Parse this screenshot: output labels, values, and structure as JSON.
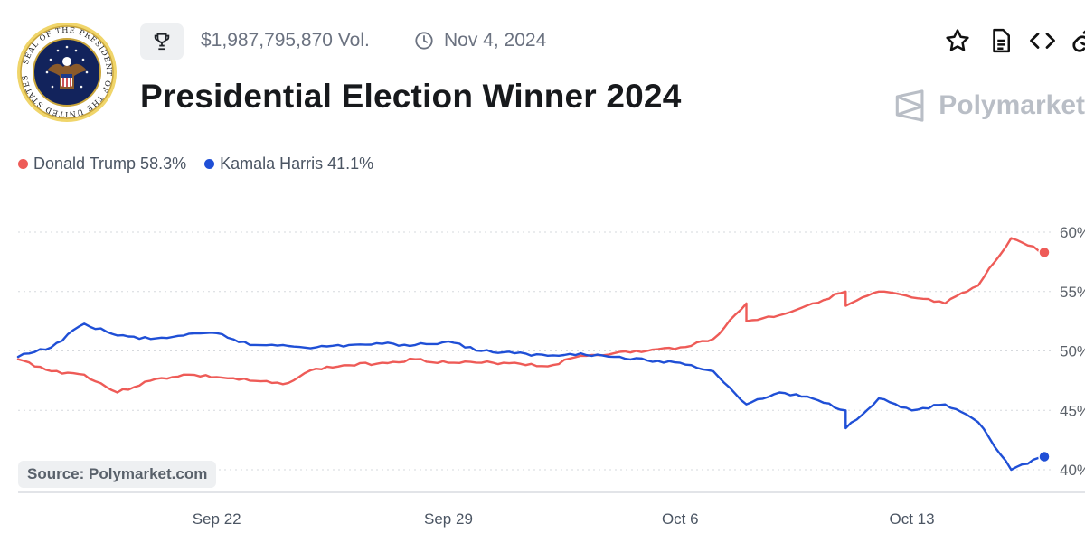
{
  "header": {
    "volume": "$1,987,795,870 Vol.",
    "date": "Nov 4, 2024",
    "title": "Presidential Election Winner 2024",
    "brand": "Polymarket"
  },
  "seal": {
    "text": "SEAL OF THE PRESIDENT OF THE UNITED STATES"
  },
  "icons": {
    "trophy": "trophy-icon",
    "clock": "clock-icon",
    "toolbar": [
      "star-icon",
      "document-icon",
      "embed-code-icon",
      "link-icon"
    ]
  },
  "legend": {
    "trump": "Donald Trump 58.3%",
    "harris": "Kamala Harris 41.1%"
  },
  "source": "Source: Polymarket.com",
  "colors": {
    "trump": "#ee5b57",
    "harris": "#1f4fd6",
    "grid": "#d6d9dd"
  },
  "chart_data": {
    "type": "line",
    "x_unit": "date",
    "x_range": [
      "2024-09-16",
      "2024-10-17"
    ],
    "x_ticks": [
      {
        "label": "Sep 22",
        "date": "2024-09-22"
      },
      {
        "label": "Sep 29",
        "date": "2024-09-29"
      },
      {
        "label": "Oct 6",
        "date": "2024-10-06"
      },
      {
        "label": "Oct 13",
        "date": "2024-10-13"
      }
    ],
    "y_ticks": [
      "40%",
      "45%",
      "50%",
      "55%",
      "60%"
    ],
    "ylim": [
      39,
      61
    ],
    "grid": true,
    "y_axis_position": "right",
    "series": [
      {
        "name": "Donald Trump",
        "color": "#ee5b57",
        "points": [
          [
            "2024-09-16",
            49.3
          ],
          [
            "2024-09-17",
            48.3
          ],
          [
            "2024-09-18",
            48.0
          ],
          [
            "2024-09-19",
            46.5
          ],
          [
            "2024-09-20",
            47.5
          ],
          [
            "2024-09-21",
            48.0
          ],
          [
            "2024-09-22",
            47.8
          ],
          [
            "2024-09-23",
            47.5
          ],
          [
            "2024-09-24",
            47.2
          ],
          [
            "2024-09-25",
            48.5
          ],
          [
            "2024-09-26",
            48.8
          ],
          [
            "2024-09-27",
            49.0
          ],
          [
            "2024-09-28",
            49.3
          ],
          [
            "2024-09-29",
            49.0
          ],
          [
            "2024-09-30",
            49.0
          ],
          [
            "2024-10-01",
            49.0
          ],
          [
            "2024-10-02",
            48.7
          ],
          [
            "2024-10-03",
            49.6
          ],
          [
            "2024-10-04",
            49.8
          ],
          [
            "2024-10-05",
            50.0
          ],
          [
            "2024-10-06",
            50.3
          ],
          [
            "2024-10-07",
            51.0
          ],
          [
            "2024-10-08",
            54.0
          ],
          [
            "2024-10-08",
            52.5
          ],
          [
            "2024-10-09",
            53.0
          ],
          [
            "2024-10-10",
            54.0
          ],
          [
            "2024-10-11",
            55.0
          ],
          [
            "2024-10-11",
            53.8
          ],
          [
            "2024-10-12",
            55.0
          ],
          [
            "2024-10-13",
            54.5
          ],
          [
            "2024-10-14",
            54.0
          ],
          [
            "2024-10-15",
            55.5
          ],
          [
            "2024-10-16",
            59.5
          ],
          [
            "2024-10-17",
            58.3
          ]
        ]
      },
      {
        "name": "Kamala Harris",
        "color": "#1f4fd6",
        "points": [
          [
            "2024-09-16",
            49.5
          ],
          [
            "2024-09-17",
            50.3
          ],
          [
            "2024-09-18",
            52.3
          ],
          [
            "2024-09-19",
            51.3
          ],
          [
            "2024-09-20",
            51.0
          ],
          [
            "2024-09-21",
            51.3
          ],
          [
            "2024-09-22",
            51.5
          ],
          [
            "2024-09-23",
            50.5
          ],
          [
            "2024-09-24",
            50.5
          ],
          [
            "2024-09-25",
            50.3
          ],
          [
            "2024-09-26",
            50.5
          ],
          [
            "2024-09-27",
            50.6
          ],
          [
            "2024-09-28",
            50.5
          ],
          [
            "2024-09-29",
            50.8
          ],
          [
            "2024-09-30",
            50.0
          ],
          [
            "2024-10-01",
            49.8
          ],
          [
            "2024-10-02",
            49.6
          ],
          [
            "2024-10-03",
            49.8
          ],
          [
            "2024-10-04",
            49.5
          ],
          [
            "2024-10-05",
            49.2
          ],
          [
            "2024-10-06",
            49.0
          ],
          [
            "2024-10-07",
            48.3
          ],
          [
            "2024-10-08",
            45.5
          ],
          [
            "2024-10-09",
            46.5
          ],
          [
            "2024-10-10",
            46.0
          ],
          [
            "2024-10-11",
            45.0
          ],
          [
            "2024-10-11",
            43.5
          ],
          [
            "2024-10-12",
            46.0
          ],
          [
            "2024-10-13",
            45.0
          ],
          [
            "2024-10-14",
            45.5
          ],
          [
            "2024-10-15",
            44.0
          ],
          [
            "2024-10-16",
            40.0
          ],
          [
            "2024-10-17",
            41.1
          ]
        ]
      }
    ]
  }
}
